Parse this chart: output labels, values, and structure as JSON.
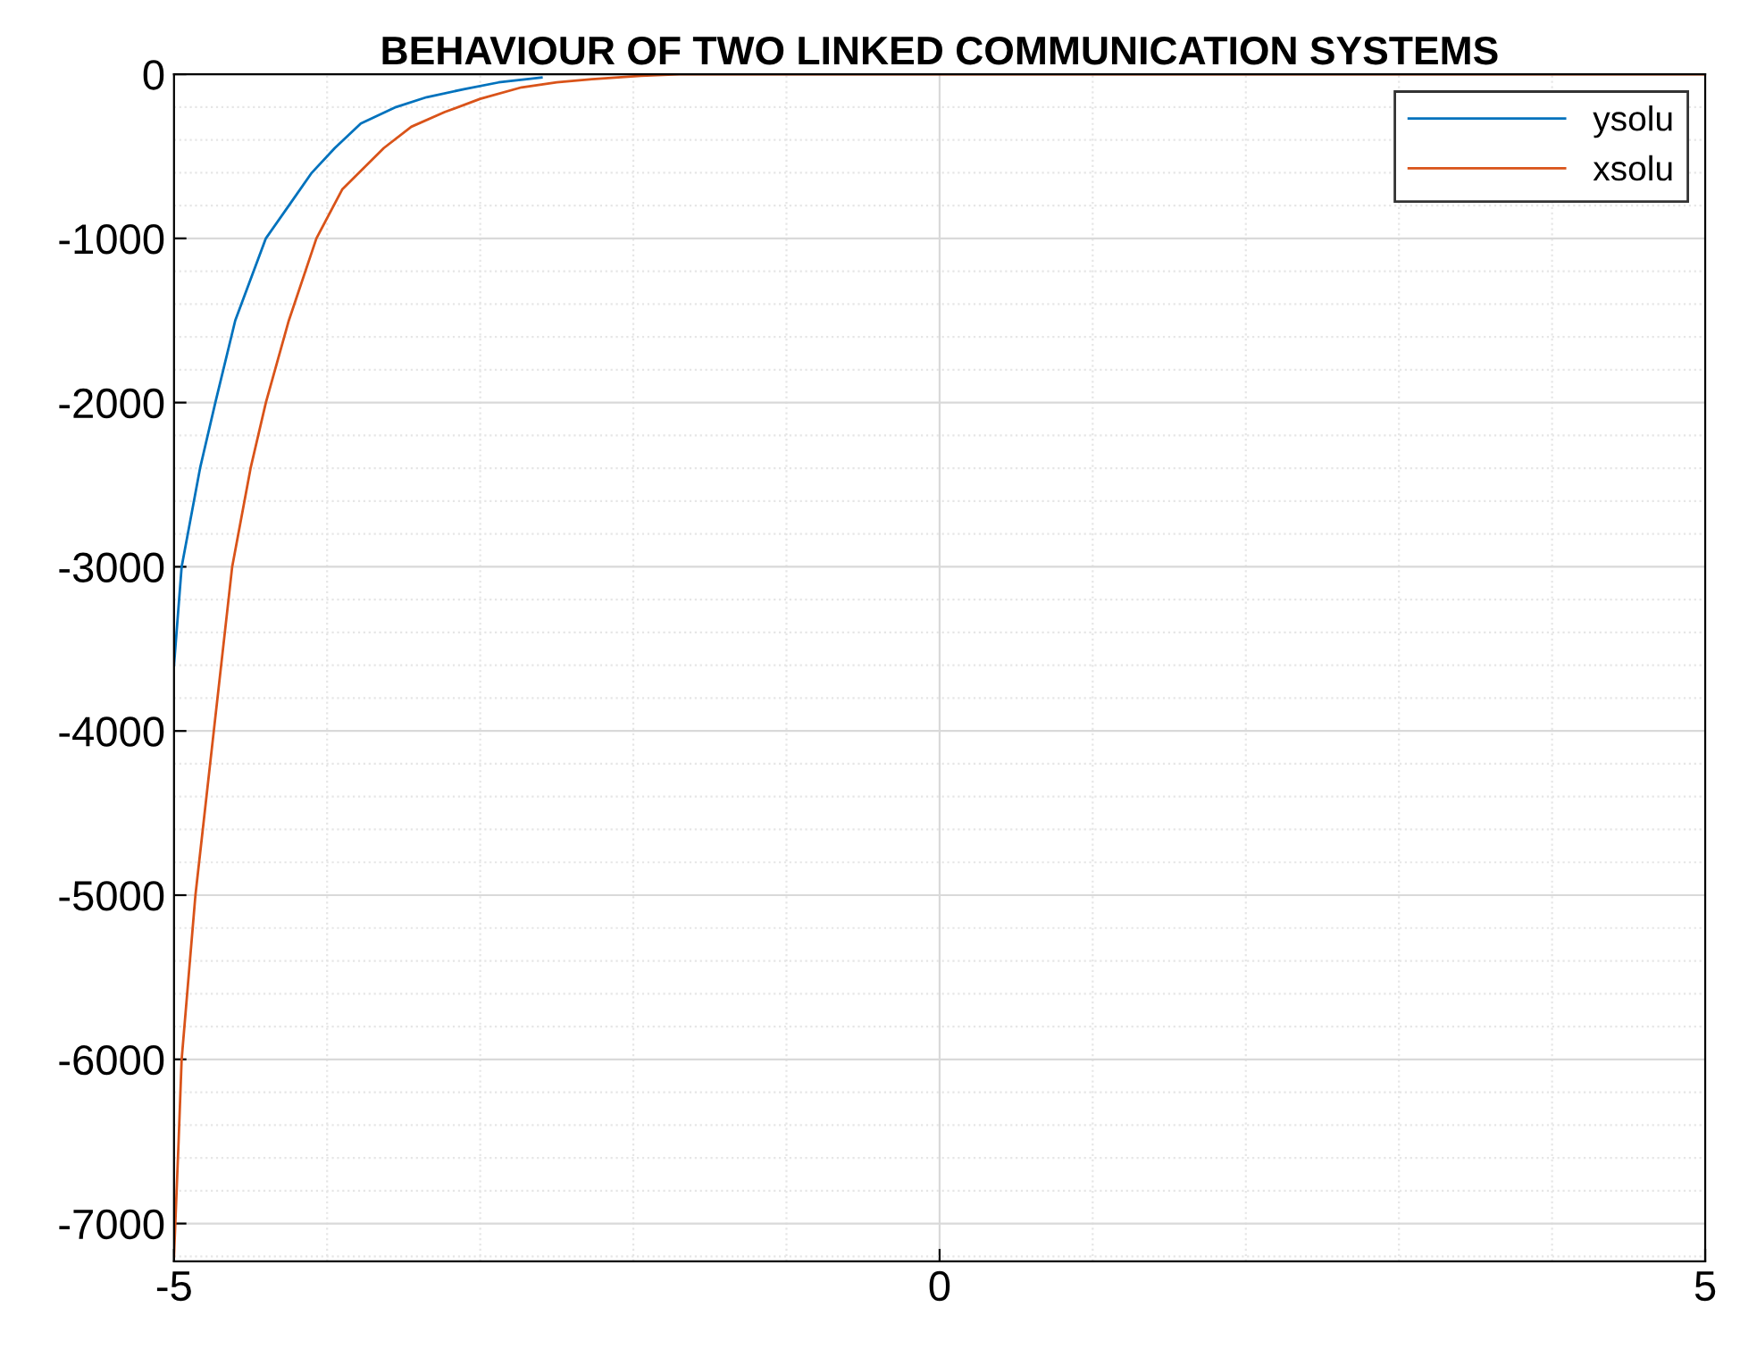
{
  "chart_data": {
    "type": "line",
    "title": "BEHAVIOUR OF TWO LINKED COMMUNICATION SYSTEMS",
    "series": [
      {
        "name": "ysolu",
        "color": "#0072bd",
        "x": [
          -5,
          -4.95,
          -4.83,
          -4.73,
          -4.6,
          -4.4,
          -4.25,
          -4.1,
          -3.95,
          -3.78,
          -3.55,
          -3.35,
          -3.1,
          -2.88,
          -2.6
        ],
        "values": [
          -3600,
          -3000,
          -2400,
          -2000,
          -1500,
          -1000,
          -800,
          -600,
          -450,
          -300,
          -200,
          -140,
          -90,
          -50,
          -20
        ]
      },
      {
        "name": "xsolu",
        "color": "#d95319",
        "x": [
          -5,
          -4.97,
          -4.95,
          -4.86,
          -4.74,
          -4.62,
          -4.5,
          -4.4,
          -4.25,
          -4.07,
          -3.9,
          -3.63,
          -3.45,
          -3.23,
          -3,
          -2.73,
          -2.5,
          -2.27,
          -1.95,
          -1.7,
          5
        ],
        "values": [
          -7200,
          -6500,
          -6000,
          -5000,
          -4000,
          -3000,
          -2400,
          -2000,
          -1500,
          -1000,
          -700,
          -450,
          -320,
          -230,
          -150,
          -80,
          -50,
          -30,
          -10,
          0,
          0
        ]
      }
    ],
    "xlim": [
      -5,
      5
    ],
    "xticks": [
      -5,
      0,
      5
    ],
    "ylim": [
      -7230,
      0
    ],
    "yticks": [
      -7000,
      -6000,
      -5000,
      -4000,
      -3000,
      -2000,
      -1000,
      0
    ],
    "grid": true,
    "legend": "top right"
  }
}
